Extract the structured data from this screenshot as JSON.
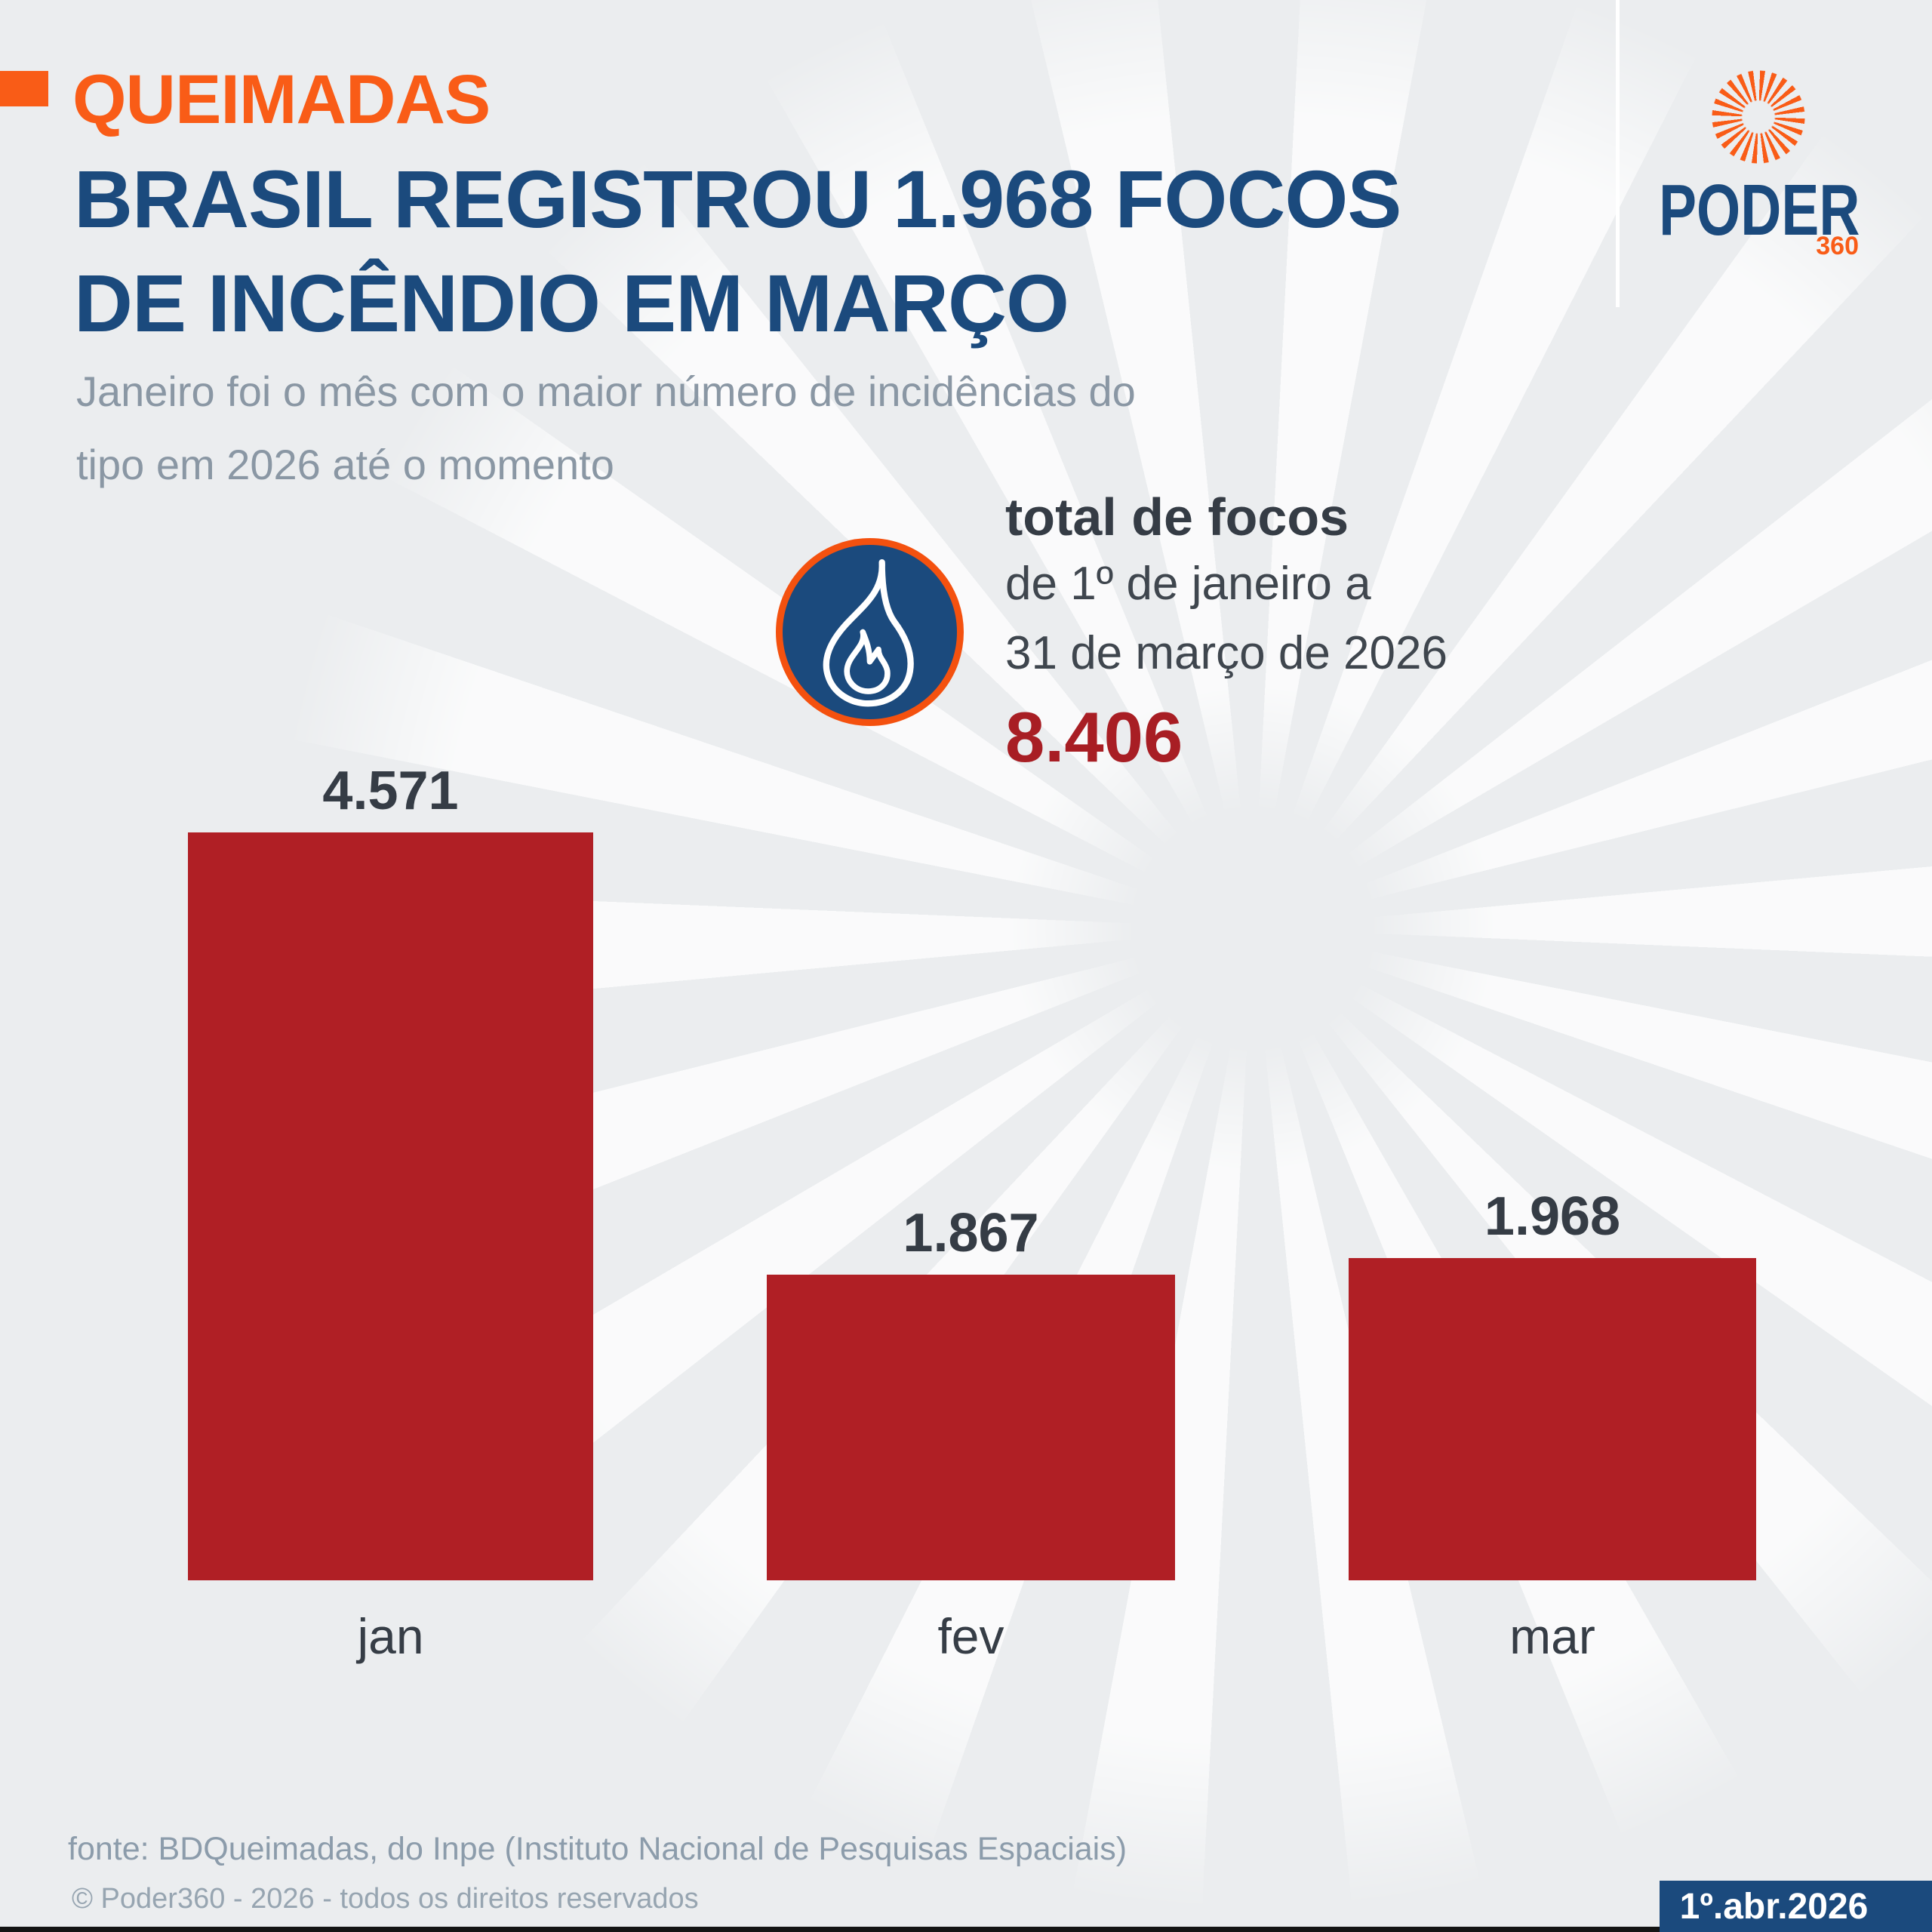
{
  "palette": {
    "bg": "#ebedef",
    "orange": "#f95c17",
    "orange-deep": "#f4510f",
    "navy": "#1b4a7d",
    "red": "#b01f25",
    "red-number": "#a81e24",
    "text-dark": "#353c45",
    "subtitle-gray": "#8a97a4",
    "footer-gray": "#8c9cab"
  },
  "header": {
    "kicker": "QUEIMADAS",
    "title_line1": "BRASIL REGISTROU 1.968 FOCOS",
    "title_line2": "DE INCÊNDIO EM MARÇO",
    "subtitle_line1": "Janeiro foi o mês com o maior número de incidências do",
    "subtitle_line2": "tipo em 2026 até o momento"
  },
  "logo": {
    "wordmark": "PODER",
    "suffix": "360"
  },
  "summary": {
    "label": "total de focos",
    "period_line1": "de 1º de janeiro a",
    "period_line2": "31 de março de 2026",
    "total_label": "8.406"
  },
  "chart_data": {
    "type": "bar",
    "title": "Focos de incêndio no Brasil por mês em 2026",
    "categories": [
      "jan",
      "fev",
      "mar"
    ],
    "values": [
      4571,
      1867,
      1968
    ],
    "value_labels": [
      "4.571",
      "1.867",
      "1.968"
    ],
    "total": 8406,
    "bar_color": "#b01f25",
    "ylim": [
      0,
      4571
    ],
    "grid": false,
    "legend": false
  },
  "footer": {
    "source": "fonte: BDQueimadas, do Inpe (Instituto Nacional de Pesquisas Espaciais)",
    "copyright": "© Poder360 - 2026 - todos os direitos reservados",
    "date_badge": "1º.abr.2026"
  }
}
